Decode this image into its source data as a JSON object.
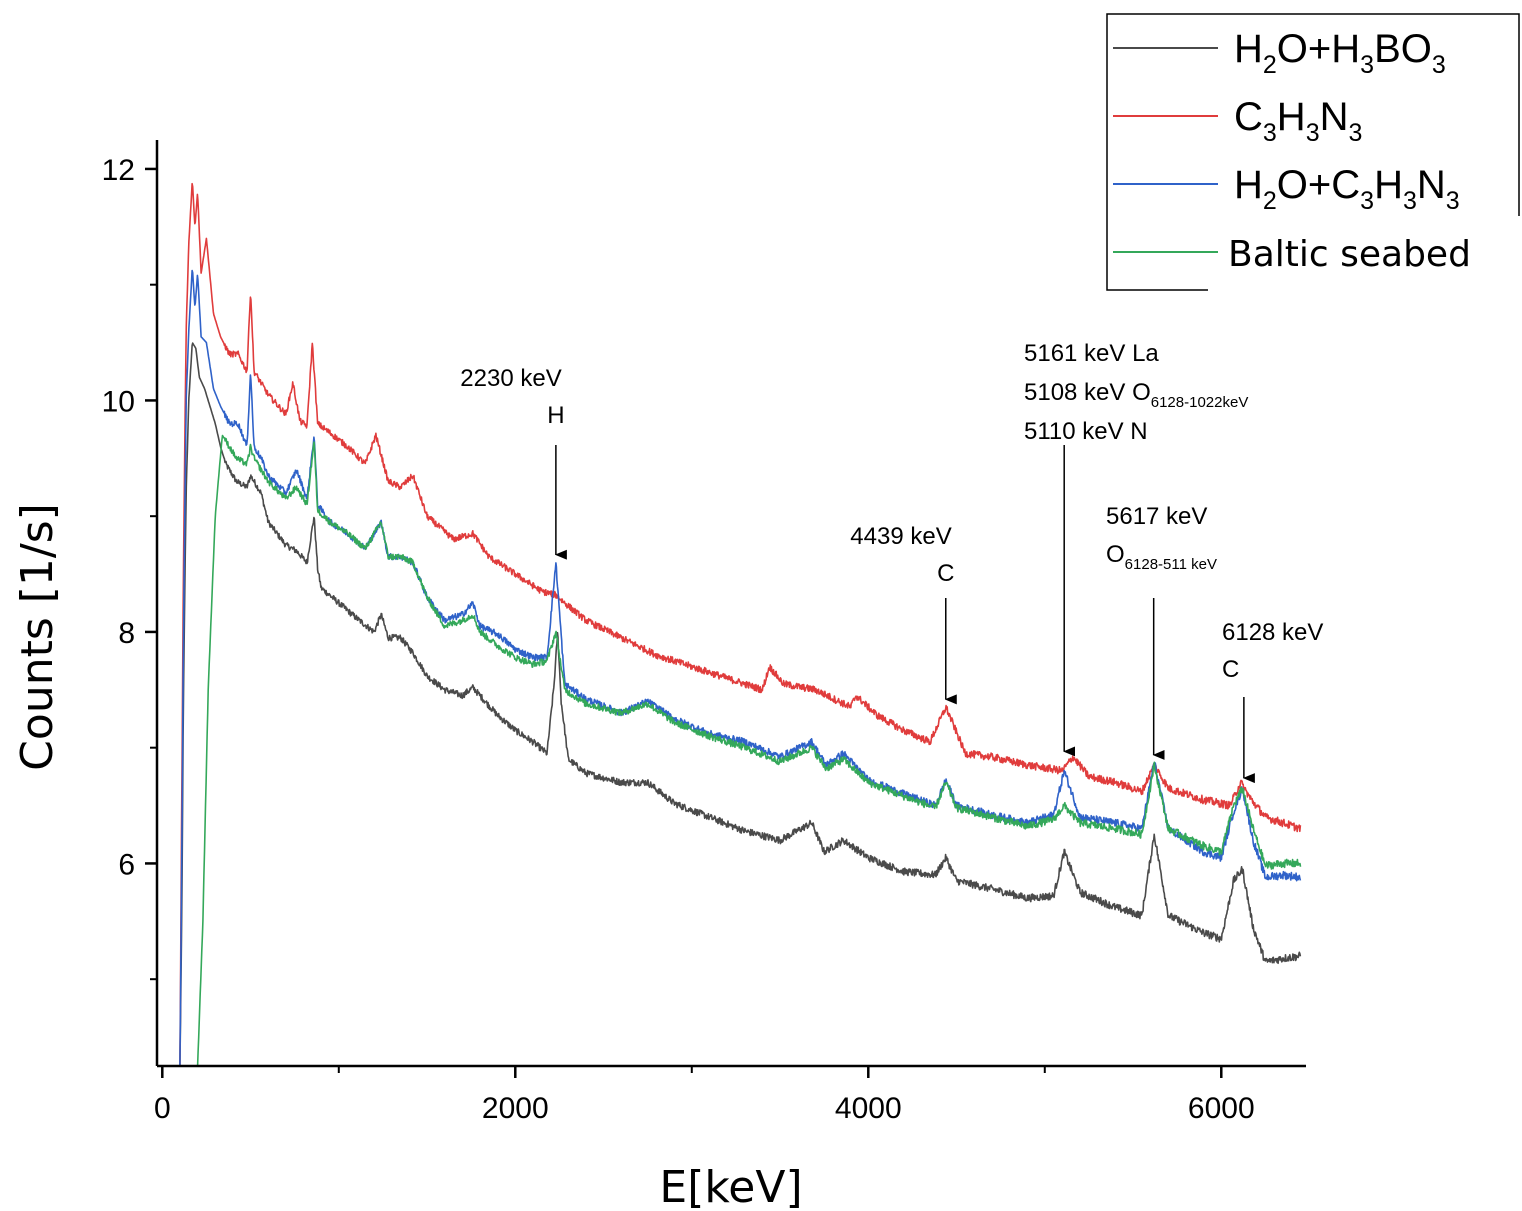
{
  "chart_data": {
    "type": "line",
    "xlabel": "E[keV]",
    "ylabel": "Counts [1/s]",
    "xlim": [
      -30,
      6480
    ],
    "ylim": [
      4.25,
      12.25
    ],
    "x_ticks": [
      0,
      2000,
      4000,
      6000
    ],
    "x_tick_labels": [
      "0",
      "2000",
      "4000",
      "6000"
    ],
    "y_ticks": [
      6,
      8,
      10,
      12
    ],
    "y_tick_labels": [
      "6",
      "8",
      "10",
      "12"
    ],
    "grid": false,
    "legend_position": "top-right",
    "colors": {
      "h2o_h3bo3": "#4a4a4a",
      "c3h3n3": "#e03c3c",
      "h2o_c3h3n3": "#2f62c9",
      "baltic": "#34a85a"
    },
    "legend": [
      {
        "key": "h2o_h3bo3",
        "parts": [
          [
            "H",
            ""
          ],
          [
            "2",
            "sub"
          ],
          [
            "O+H",
            ""
          ],
          [
            "3",
            "sub"
          ],
          [
            "BO",
            ""
          ],
          [
            "3",
            "sub"
          ]
        ]
      },
      {
        "key": "c3h3n3",
        "parts": [
          [
            "C",
            ""
          ],
          [
            "3",
            "sub"
          ],
          [
            "H",
            ""
          ],
          [
            "3",
            "sub"
          ],
          [
            "N",
            ""
          ],
          [
            "3",
            "sub"
          ]
        ]
      },
      {
        "key": "h2o_c3h3n3",
        "parts": [
          [
            "H",
            ""
          ],
          [
            "2",
            "sub"
          ],
          [
            "O+C",
            ""
          ],
          [
            "3",
            "sub"
          ],
          [
            "H",
            ""
          ],
          [
            "3",
            "sub"
          ],
          [
            "N",
            ""
          ],
          [
            "3",
            "sub"
          ]
        ]
      },
      {
        "key": "baltic",
        "label": "Baltic seabed"
      }
    ],
    "series": [
      {
        "key": "h2o_h3bo3",
        "x": [
          100,
          110,
          120,
          135,
          150,
          170,
          190,
          210,
          240,
          270,
          300,
          330,
          360,
          420,
          480,
          500,
          520,
          560,
          600,
          700,
          760,
          820,
          860,
          880,
          900,
          1000,
          1100,
          1200,
          1240,
          1280,
          1350,
          1420,
          1500,
          1600,
          1700,
          1760,
          1800,
          1900,
          2000,
          2100,
          2180,
          2220,
          2240,
          2260,
          2300,
          2400,
          2600,
          2750,
          2900,
          3100,
          3300,
          3500,
          3680,
          3750,
          3860,
          4000,
          4200,
          4380,
          4440,
          4500,
          4700,
          4900,
          5050,
          5110,
          5200,
          5400,
          5550,
          5620,
          5700,
          5900,
          6000,
          6070,
          6120,
          6180,
          6250,
          6350,
          6450
        ],
        "values": [
          4.25,
          5.5,
          7.5,
          9.2,
          10.0,
          10.5,
          10.45,
          10.2,
          10.1,
          9.95,
          9.8,
          9.6,
          9.45,
          9.3,
          9.25,
          9.35,
          9.3,
          9.2,
          8.95,
          8.75,
          8.7,
          8.6,
          9.0,
          8.55,
          8.38,
          8.25,
          8.12,
          8.0,
          8.15,
          7.95,
          7.95,
          7.82,
          7.62,
          7.5,
          7.45,
          7.52,
          7.45,
          7.28,
          7.15,
          7.05,
          6.95,
          7.55,
          8.0,
          7.4,
          6.9,
          6.78,
          6.7,
          6.7,
          6.52,
          6.4,
          6.28,
          6.2,
          6.35,
          6.1,
          6.2,
          6.05,
          5.93,
          5.9,
          6.05,
          5.85,
          5.78,
          5.7,
          5.72,
          6.1,
          5.75,
          5.62,
          5.55,
          6.25,
          5.55,
          5.4,
          5.35,
          5.85,
          5.95,
          5.45,
          5.15,
          5.18,
          5.2
        ]
      },
      {
        "key": "c3h3n3",
        "x": [
          100,
          110,
          120,
          135,
          150,
          170,
          185,
          200,
          220,
          250,
          290,
          330,
          380,
          430,
          480,
          500,
          520,
          560,
          600,
          700,
          740,
          780,
          820,
          850,
          880,
          950,
          1050,
          1150,
          1210,
          1280,
          1350,
          1420,
          1500,
          1650,
          1760,
          1850,
          2000,
          2150,
          2230,
          2280,
          2400,
          2600,
          2800,
          3000,
          3200,
          3400,
          3440,
          3520,
          3700,
          3900,
          3930,
          4050,
          4200,
          4350,
          4440,
          4550,
          4700,
          4900,
          5100,
          5160,
          5250,
          5400,
          5550,
          5620,
          5700,
          5900,
          6050,
          6110,
          6170,
          6250,
          6350,
          6450
        ],
        "values": [
          4.25,
          6.5,
          8.6,
          10.6,
          11.35,
          11.9,
          11.5,
          11.8,
          11.1,
          11.4,
          10.75,
          10.55,
          10.4,
          10.4,
          10.25,
          10.95,
          10.25,
          10.15,
          10.05,
          9.88,
          10.15,
          9.82,
          9.78,
          10.5,
          9.8,
          9.72,
          9.6,
          9.45,
          9.7,
          9.3,
          9.25,
          9.35,
          9.0,
          8.8,
          8.85,
          8.65,
          8.5,
          8.35,
          8.32,
          8.25,
          8.1,
          7.95,
          7.8,
          7.7,
          7.6,
          7.5,
          7.7,
          7.55,
          7.5,
          7.35,
          7.45,
          7.28,
          7.15,
          7.05,
          7.35,
          6.95,
          6.92,
          6.85,
          6.8,
          6.92,
          6.75,
          6.7,
          6.62,
          6.85,
          6.65,
          6.55,
          6.5,
          6.7,
          6.55,
          6.4,
          6.35,
          6.3
        ]
      },
      {
        "key": "h2o_c3h3n3",
        "x": [
          100,
          110,
          120,
          135,
          150,
          170,
          185,
          200,
          220,
          250,
          290,
          330,
          380,
          430,
          480,
          500,
          520,
          560,
          600,
          700,
          760,
          820,
          860,
          880,
          950,
          1050,
          1150,
          1240,
          1280,
          1350,
          1420,
          1500,
          1600,
          1700,
          1760,
          1800,
          1900,
          2000,
          2100,
          2180,
          2230,
          2280,
          2400,
          2600,
          2750,
          2900,
          3100,
          3300,
          3500,
          3680,
          3760,
          3860,
          4000,
          4200,
          4380,
          4440,
          4500,
          4700,
          4900,
          5050,
          5110,
          5200,
          5400,
          5550,
          5620,
          5700,
          5900,
          6000,
          6070,
          6120,
          6180,
          6250,
          6350,
          6450
        ],
        "values": [
          4.25,
          6.0,
          8.0,
          10.0,
          10.6,
          11.15,
          10.8,
          11.1,
          10.55,
          10.5,
          10.1,
          9.95,
          9.8,
          9.8,
          9.6,
          10.25,
          9.6,
          9.5,
          9.35,
          9.2,
          9.4,
          9.15,
          9.7,
          9.1,
          8.95,
          8.85,
          8.72,
          8.95,
          8.65,
          8.65,
          8.6,
          8.3,
          8.1,
          8.15,
          8.25,
          8.05,
          7.98,
          7.85,
          7.78,
          7.78,
          8.6,
          7.55,
          7.42,
          7.3,
          7.4,
          7.25,
          7.12,
          7.05,
          6.92,
          7.05,
          6.85,
          6.95,
          6.72,
          6.6,
          6.5,
          6.72,
          6.5,
          6.42,
          6.35,
          6.42,
          6.8,
          6.4,
          6.35,
          6.3,
          6.88,
          6.3,
          6.1,
          6.05,
          6.45,
          6.65,
          6.2,
          5.88,
          5.9,
          5.88
        ]
      },
      {
        "key": "baltic",
        "x": [
          200,
          230,
          260,
          300,
          340,
          380,
          420,
          480,
          500,
          520,
          560,
          600,
          700,
          760,
          820,
          860,
          880,
          950,
          1050,
          1150,
          1240,
          1280,
          1350,
          1420,
          1500,
          1600,
          1700,
          1760,
          1800,
          1900,
          2000,
          2100,
          2180,
          2230,
          2280,
          2400,
          2600,
          2750,
          2900,
          3100,
          3300,
          3500,
          3680,
          3760,
          3860,
          4000,
          4200,
          4380,
          4440,
          4500,
          4700,
          4900,
          5050,
          5110,
          5200,
          5400,
          5550,
          5620,
          5700,
          5900,
          6000,
          6070,
          6120,
          6180,
          6250,
          6350,
          6450
        ],
        "values": [
          4.25,
          5.5,
          7.5,
          9.0,
          9.7,
          9.6,
          9.5,
          9.45,
          9.6,
          9.5,
          9.4,
          9.3,
          9.15,
          9.25,
          9.1,
          9.65,
          9.05,
          8.95,
          8.85,
          8.72,
          8.95,
          8.65,
          8.65,
          8.6,
          8.3,
          8.05,
          8.1,
          8.15,
          8.0,
          7.88,
          7.78,
          7.72,
          7.75,
          8.0,
          7.5,
          7.38,
          7.3,
          7.38,
          7.22,
          7.1,
          7.0,
          6.88,
          7.0,
          6.82,
          6.9,
          6.7,
          6.58,
          6.48,
          6.7,
          6.48,
          6.4,
          6.32,
          6.38,
          6.5,
          6.35,
          6.3,
          6.25,
          6.85,
          6.3,
          6.15,
          6.1,
          6.5,
          6.65,
          6.3,
          5.98,
          6.0,
          6.0
        ]
      }
    ],
    "annotations": [
      {
        "lines": [
          [
            [
              "2230 keV",
              ""
            ]
          ],
          [
            [
              "H",
              ""
            ]
          ]
        ],
        "align": "mid",
        "x": 2230,
        "y": 8.65
      },
      {
        "lines": [
          [
            [
              "4439 keV",
              ""
            ]
          ],
          [
            [
              "C",
              ""
            ]
          ]
        ],
        "align": "mid",
        "x": 4439,
        "y": 7.4
      },
      {
        "lines": [
          [
            [
              "5161 keV La",
              ""
            ]
          ],
          [
            [
              "5108 keV O",
              ""
            ],
            [
              "6128-1022keV",
              "sub"
            ]
          ],
          [
            [
              "5110 keV N",
              ""
            ]
          ]
        ],
        "align": "left",
        "x": 5110,
        "y": 6.95
      },
      {
        "lines": [
          [
            [
              "5617 keV",
              ""
            ]
          ],
          [
            [
              "O",
              ""
            ],
            [
              "6128-511 keV",
              "sub"
            ]
          ]
        ],
        "align": "left",
        "x": 5617,
        "y": 6.92
      },
      {
        "lines": [
          [
            [
              "6128 keV",
              ""
            ]
          ],
          [
            [
              "C",
              ""
            ]
          ]
        ],
        "align": "left",
        "x": 6128,
        "y": 6.72
      }
    ]
  }
}
